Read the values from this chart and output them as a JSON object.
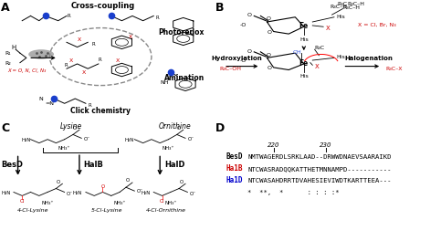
{
  "bg_color": "#ffffff",
  "panelD": {
    "pos220": "220",
    "pos230": "230",
    "besd_color": "#000000",
    "halb_color": "#cc0000",
    "hald_color": "#0000cc",
    "seq_fontsize": 5.2,
    "label_fontsize": 5.5
  }
}
